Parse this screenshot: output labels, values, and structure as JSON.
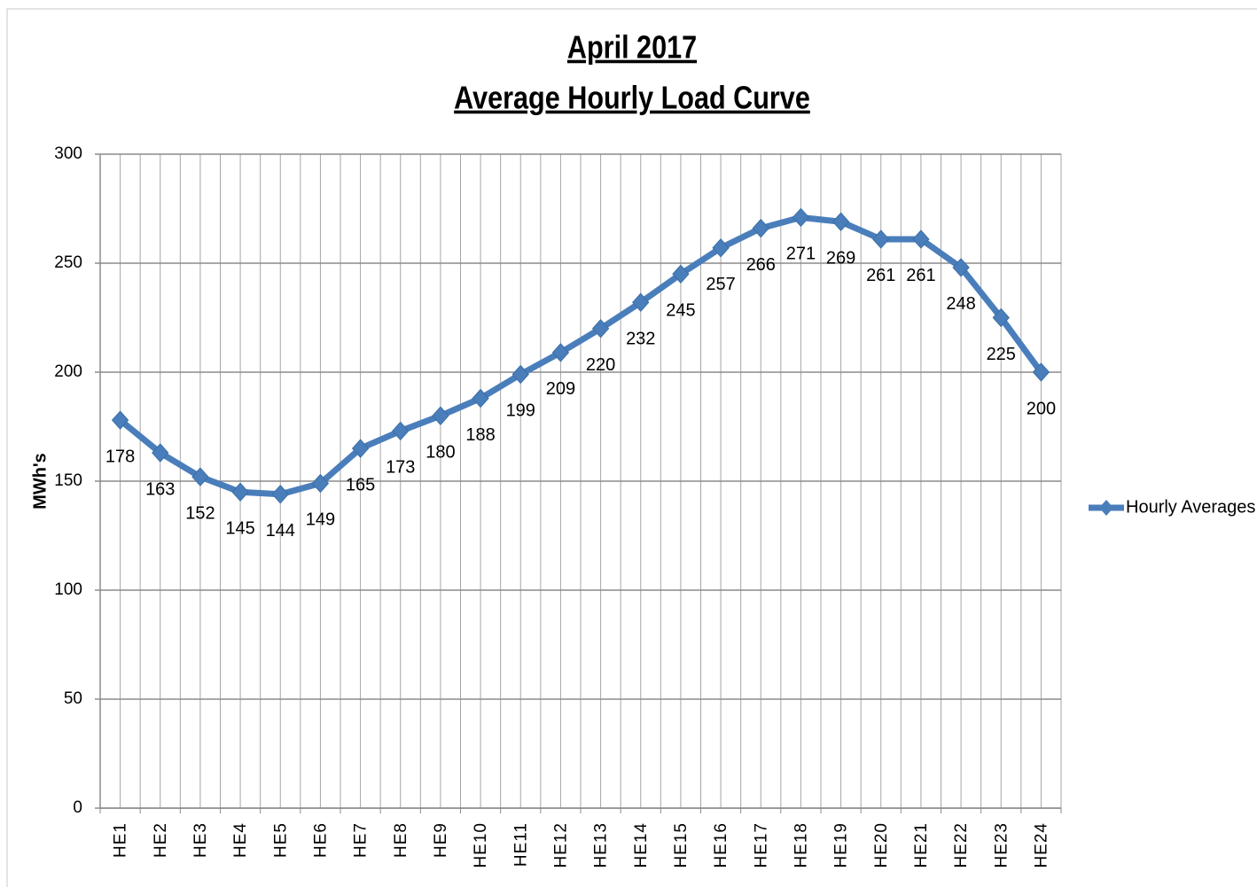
{
  "chart_data": {
    "type": "line",
    "title": "April 2017",
    "subtitle": "Average Hourly Load Curve",
    "y_label": "MWh's",
    "categories": [
      "HE1",
      "HE2",
      "HE3",
      "HE4",
      "HE5",
      "HE6",
      "HE7",
      "HE8",
      "HE9",
      "HE10",
      "HE11",
      "HE12",
      "HE13",
      "HE14",
      "HE15",
      "HE16",
      "HE17",
      "HE18",
      "HE19",
      "HE20",
      "HE21",
      "HE22",
      "HE23",
      "HE24"
    ],
    "series": [
      {
        "name": "Hourly Averages",
        "color": "#4a7ebb",
        "values": [
          178,
          163,
          152,
          145,
          144,
          149,
          165,
          173,
          180,
          188,
          199,
          209,
          220,
          232,
          245,
          257,
          266,
          271,
          269,
          261,
          261,
          248,
          225,
          200
        ]
      }
    ],
    "ylim": [
      0,
      300
    ],
    "yticks": [
      0,
      50,
      100,
      150,
      200,
      250,
      300
    ],
    "grid": true,
    "legend": "right",
    "data_labels": true
  }
}
